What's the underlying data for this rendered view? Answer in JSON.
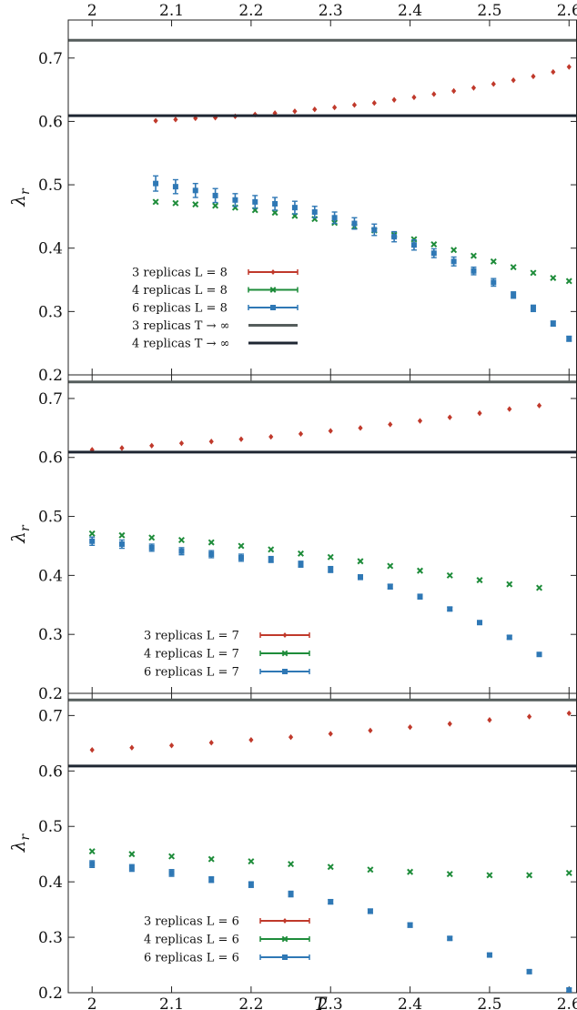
{
  "chart_data": [
    {
      "type": "scatter",
      "xlabel": "",
      "ylabel": "λ_r",
      "xlim": [
        1.97,
        2.61
      ],
      "ylim": [
        0.2,
        0.76
      ],
      "xticks": [
        2,
        2.1,
        2.2,
        2.3,
        2.4,
        2.5,
        2.6
      ],
      "yticks": [
        0.2,
        0.3,
        0.4,
        0.5,
        0.6,
        0.7
      ],
      "tick_labels_top": true,
      "grid": false,
      "legend": "bottom-left",
      "series": [
        {
          "name": "3 replicas L = 8",
          "color": "#c0392b",
          "marker": "diamond",
          "x": [
            2.08,
            2.105,
            2.13,
            2.155,
            2.18,
            2.205,
            2.23,
            2.255,
            2.28,
            2.305,
            2.33,
            2.355,
            2.38,
            2.405,
            2.43,
            2.455,
            2.48,
            2.505,
            2.53,
            2.555,
            2.58,
            2.6
          ],
          "y": [
            0.601,
            0.603,
            0.605,
            0.606,
            0.608,
            0.611,
            0.613,
            0.616,
            0.619,
            0.622,
            0.626,
            0.629,
            0.634,
            0.638,
            0.643,
            0.648,
            0.653,
            0.659,
            0.665,
            0.671,
            0.678,
            0.686
          ]
        },
        {
          "name": "4 replicas L = 8",
          "color": "#1e8c3a",
          "marker": "x",
          "x": [
            2.08,
            2.105,
            2.13,
            2.155,
            2.18,
            2.205,
            2.23,
            2.255,
            2.28,
            2.305,
            2.33,
            2.355,
            2.38,
            2.405,
            2.43,
            2.455,
            2.48,
            2.505,
            2.53,
            2.555,
            2.58,
            2.6
          ],
          "y": [
            0.473,
            0.471,
            0.469,
            0.467,
            0.464,
            0.46,
            0.456,
            0.451,
            0.446,
            0.44,
            0.434,
            0.428,
            0.421,
            0.414,
            0.406,
            0.397,
            0.388,
            0.379,
            0.37,
            0.361,
            0.353,
            0.348
          ]
        },
        {
          "name": "6 replicas L = 8",
          "color": "#2f78b5",
          "marker": "square",
          "x": [
            2.08,
            2.105,
            2.13,
            2.155,
            2.18,
            2.205,
            2.23,
            2.255,
            2.28,
            2.305,
            2.33,
            2.355,
            2.38,
            2.405,
            2.43,
            2.455,
            2.48,
            2.505,
            2.53,
            2.555,
            2.58,
            2.6
          ],
          "y": [
            0.502,
            0.497,
            0.491,
            0.483,
            0.476,
            0.473,
            0.47,
            0.464,
            0.457,
            0.448,
            0.439,
            0.429,
            0.418,
            0.405,
            0.392,
            0.379,
            0.364,
            0.346,
            0.326,
            0.305,
            0.281,
            0.257
          ],
          "err": [
            0.012,
            0.011,
            0.011,
            0.011,
            0.01,
            0.01,
            0.01,
            0.01,
            0.009,
            0.009,
            0.009,
            0.009,
            0.008,
            0.008,
            0.007,
            0.007,
            0.006,
            0.006,
            0.005,
            0.005,
            0.004,
            0.004
          ]
        },
        {
          "name": "3 replicas T → ∞",
          "color": "#555d5c",
          "marker": "hline",
          "y": [
            0.728
          ]
        },
        {
          "name": "4 replicas T → ∞",
          "color": "#1f2733",
          "marker": "hline",
          "y": [
            0.609
          ]
        }
      ]
    },
    {
      "type": "scatter",
      "xlabel": "",
      "ylabel": "λ_r",
      "xlim": [
        1.97,
        2.61
      ],
      "ylim": [
        0.2,
        0.74
      ],
      "xticks": [
        2,
        2.1,
        2.2,
        2.3,
        2.4,
        2.5,
        2.6
      ],
      "yticks": [
        0.2,
        0.3,
        0.4,
        0.5,
        0.6,
        0.7
      ],
      "grid": false,
      "legend": "bottom-left",
      "series": [
        {
          "name": "3 replicas L = 7",
          "color": "#c0392b",
          "marker": "diamond",
          "x": [
            2.0,
            2.0375,
            2.075,
            2.1125,
            2.15,
            2.1875,
            2.225,
            2.2625,
            2.3,
            2.3375,
            2.375,
            2.4125,
            2.45,
            2.4875,
            2.525,
            2.5625
          ],
          "y": [
            0.613,
            0.616,
            0.62,
            0.624,
            0.627,
            0.631,
            0.635,
            0.64,
            0.645,
            0.65,
            0.656,
            0.662,
            0.668,
            0.675,
            0.682,
            0.688
          ]
        },
        {
          "name": "4 replicas L = 7",
          "color": "#1e8c3a",
          "marker": "x",
          "x": [
            2.0,
            2.0375,
            2.075,
            2.1125,
            2.15,
            2.1875,
            2.225,
            2.2625,
            2.3,
            2.3375,
            2.375,
            2.4125,
            2.45,
            2.4875,
            2.525,
            2.5625
          ],
          "y": [
            0.471,
            0.468,
            0.464,
            0.46,
            0.456,
            0.45,
            0.444,
            0.437,
            0.431,
            0.424,
            0.416,
            0.408,
            0.4,
            0.392,
            0.385,
            0.379
          ]
        },
        {
          "name": "6 replicas L = 7",
          "color": "#2f78b5",
          "marker": "square",
          "x": [
            2.0,
            2.0375,
            2.075,
            2.1125,
            2.15,
            2.1875,
            2.225,
            2.2625,
            2.3,
            2.3375,
            2.375,
            2.4125,
            2.45,
            2.4875,
            2.525,
            2.5625
          ],
          "y": [
            0.458,
            0.453,
            0.447,
            0.441,
            0.436,
            0.43,
            0.427,
            0.419,
            0.41,
            0.397,
            0.381,
            0.364,
            0.343,
            0.32,
            0.295,
            0.266
          ],
          "err": [
            0.007,
            0.007,
            0.006,
            0.006,
            0.006,
            0.006,
            0.005,
            0.005,
            0.005,
            0.004,
            0.004,
            0.004,
            0.003,
            0.003,
            0.003,
            0.003
          ]
        },
        {
          "name": "",
          "color": "#555d5c",
          "marker": "hline",
          "y": [
            0.728
          ]
        },
        {
          "name": "",
          "color": "#1f2733",
          "marker": "hline",
          "y": [
            0.609
          ]
        }
      ]
    },
    {
      "type": "scatter",
      "xlabel": "T",
      "ylabel": "λ_r",
      "xlim": [
        1.97,
        2.61
      ],
      "ylim": [
        0.2,
        0.74
      ],
      "xticks": [
        2,
        2.1,
        2.2,
        2.3,
        2.4,
        2.5,
        2.6
      ],
      "yticks": [
        0.2,
        0.3,
        0.4,
        0.5,
        0.6,
        0.7
      ],
      "grid": false,
      "legend": "bottom-left",
      "series": [
        {
          "name": "3 replicas L = 6",
          "color": "#c0392b",
          "marker": "diamond",
          "x": [
            2.0,
            2.05,
            2.1,
            2.15,
            2.2,
            2.25,
            2.3,
            2.35,
            2.4,
            2.45,
            2.5,
            2.55,
            2.6
          ],
          "y": [
            0.638,
            0.642,
            0.646,
            0.651,
            0.656,
            0.661,
            0.667,
            0.673,
            0.679,
            0.685,
            0.692,
            0.698,
            0.704
          ]
        },
        {
          "name": "4 replicas L = 6",
          "color": "#1e8c3a",
          "marker": "x",
          "x": [
            2.0,
            2.05,
            2.1,
            2.15,
            2.2,
            2.25,
            2.3,
            2.35,
            2.4,
            2.45,
            2.5,
            2.55,
            2.6
          ],
          "y": [
            0.455,
            0.45,
            0.446,
            0.441,
            0.437,
            0.432,
            0.427,
            0.422,
            0.418,
            0.414,
            0.412,
            0.412,
            0.416
          ]
        },
        {
          "name": "6 replicas L = 6",
          "color": "#2f78b5",
          "marker": "square",
          "x": [
            2.0,
            2.05,
            2.1,
            2.15,
            2.2,
            2.25,
            2.3,
            2.35,
            2.4,
            2.45,
            2.5,
            2.55,
            2.6
          ],
          "y": [
            0.432,
            0.425,
            0.416,
            0.404,
            0.395,
            0.378,
            0.364,
            0.347,
            0.322,
            0.298,
            0.268,
            0.238,
            0.205
          ],
          "err": [
            0.006,
            0.006,
            0.006,
            0.005,
            0.005,
            0.005,
            0.004,
            0.004,
            0.004,
            0.003,
            0.003,
            0.003,
            0.003
          ]
        },
        {
          "name": "",
          "color": "#555d5c",
          "marker": "hline",
          "y": [
            0.728
          ]
        },
        {
          "name": "",
          "color": "#1f2733",
          "marker": "hline",
          "y": [
            0.609
          ]
        }
      ]
    }
  ]
}
